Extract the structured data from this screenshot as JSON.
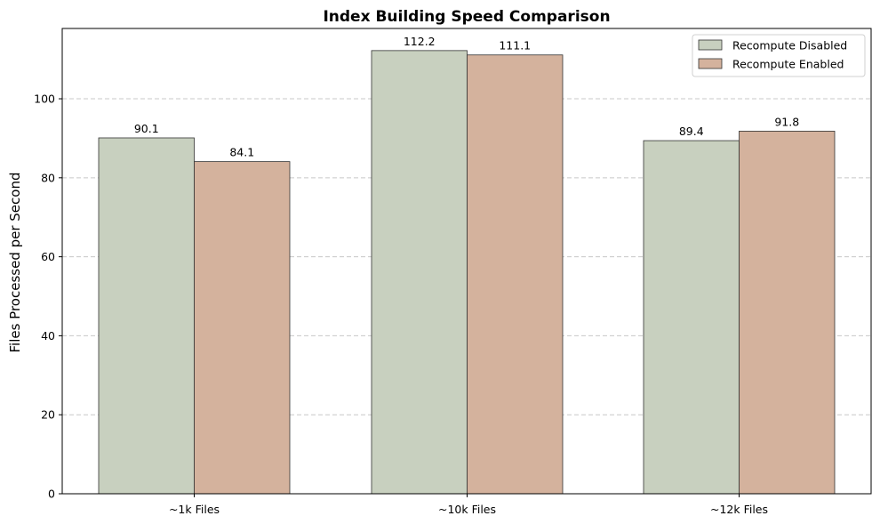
{
  "chart_data": {
    "type": "bar",
    "title": "Index Building Speed Comparison",
    "xlabel": "",
    "ylabel": "Files Processed per Second",
    "categories": [
      "~1k Files",
      "~10k Files",
      "~12k Files"
    ],
    "series": [
      {
        "name": "Recompute Disabled",
        "values": [
          90.1,
          112.2,
          89.4
        ],
        "color": "#c8d0bf"
      },
      {
        "name": "Recompute Enabled",
        "values": [
          84.1,
          111.1,
          91.8
        ],
        "color": "#d4b29d"
      }
    ],
    "data_labels": [
      [
        "90.1",
        "112.2",
        "89.4"
      ],
      [
        "84.1",
        "111.1",
        "91.8"
      ]
    ],
    "ylim": [
      0,
      117.8
    ],
    "yticks": [
      0,
      20,
      40,
      60,
      80,
      100
    ],
    "ytick_labels": [
      "0",
      "20",
      "40",
      "60",
      "80",
      "100"
    ],
    "grid": "y-dashed",
    "legend_position": "top-right",
    "edge_color": "#333333"
  }
}
